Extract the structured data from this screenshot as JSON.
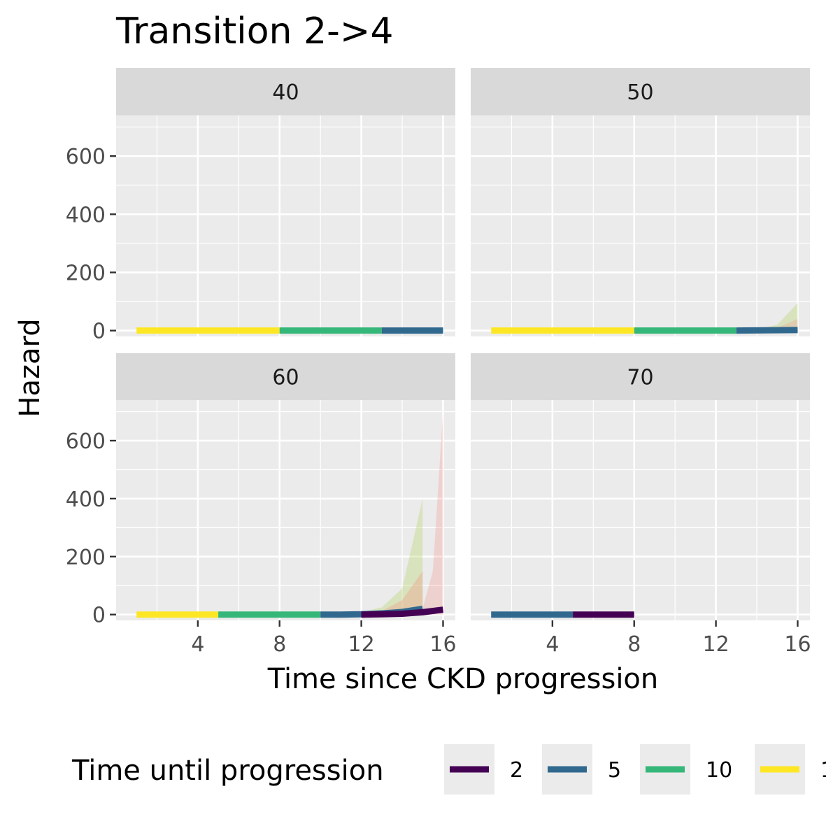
{
  "chart_data": {
    "type": "line",
    "title": "Transition 2->4",
    "xlabel": "Time since CKD progression",
    "ylabel": "Hazard",
    "xlim": [
      0,
      16.6
    ],
    "ylim": [
      -20,
      740
    ],
    "x_ticks": [
      4,
      8,
      12,
      16
    ],
    "y_ticks": [
      0,
      200,
      400,
      600
    ],
    "grid": true,
    "legend": {
      "title": "Time until progression",
      "position": "bottom",
      "entries": [
        {
          "label": "2",
          "color": "#440154"
        },
        {
          "label": "5",
          "color": "#31688E"
        },
        {
          "label": "10",
          "color": "#35B779"
        },
        {
          "label": "1",
          "color": "#FDE725"
        }
      ]
    },
    "panels": [
      {
        "label": "40",
        "ribbons": [],
        "series": [
          {
            "key": "yellow",
            "color": "#FDE725",
            "x": [
              1,
              8
            ],
            "y": [
              0,
              0
            ]
          },
          {
            "key": "green",
            "color": "#35B779",
            "x": [
              8,
              13
            ],
            "y": [
              0,
              0
            ]
          },
          {
            "key": "blue",
            "color": "#31688E",
            "x": [
              13,
              16
            ],
            "y": [
              0,
              0
            ]
          }
        ]
      },
      {
        "label": "50",
        "ribbons": [
          {
            "color": "#B5D46B",
            "opacity": 0.35,
            "x": [
              13,
              14,
              15,
              16
            ],
            "lower": [
              0,
              0,
              0,
              0
            ],
            "upper": [
              2,
              5,
              20,
              95
            ]
          },
          {
            "color": "#F8766D",
            "opacity": 0.2,
            "x": [
              13,
              14,
              15,
              16
            ],
            "lower": [
              0,
              0,
              0,
              0
            ],
            "upper": [
              1,
              3,
              10,
              40
            ]
          }
        ],
        "series": [
          {
            "key": "yellow",
            "color": "#FDE725",
            "x": [
              1,
              8
            ],
            "y": [
              0,
              0
            ]
          },
          {
            "key": "green",
            "color": "#35B779",
            "x": [
              8,
              13
            ],
            "y": [
              0,
              0
            ]
          },
          {
            "key": "blue",
            "color": "#31688E",
            "x": [
              13,
              16
            ],
            "y": [
              0,
              2
            ]
          }
        ]
      },
      {
        "label": "60",
        "ribbons": [
          {
            "color": "#B5D46B",
            "opacity": 0.35,
            "x": [
              10,
              11,
              12,
              13,
              14,
              15
            ],
            "lower": [
              0,
              0,
              0,
              0,
              0,
              0
            ],
            "upper": [
              2,
              4,
              8,
              25,
              90,
              400
            ]
          },
          {
            "color": "#F8766D",
            "opacity": 0.25,
            "x": [
              12,
              13,
              14,
              15
            ],
            "lower": [
              0,
              0,
              0,
              0
            ],
            "upper": [
              5,
              12,
              50,
              150
            ]
          },
          {
            "color": "#F8766D",
            "opacity": 0.22,
            "x": [
              15,
              15.5,
              16
            ],
            "lower": [
              0,
              0,
              0
            ],
            "upper": [
              20,
              150,
              700
            ]
          }
        ],
        "series": [
          {
            "key": "yellow",
            "color": "#FDE725",
            "x": [
              1,
              5
            ],
            "y": [
              0,
              0
            ]
          },
          {
            "key": "green",
            "color": "#35B779",
            "x": [
              5,
              10
            ],
            "y": [
              0,
              0
            ]
          },
          {
            "key": "blue",
            "color": "#31688E",
            "x": [
              10,
              11,
              12,
              13,
              14,
              15
            ],
            "y": [
              0,
              0,
              1,
              4,
              9,
              20
            ]
          },
          {
            "key": "purple",
            "color": "#440154",
            "x": [
              12,
              13,
              14,
              15,
              16
            ],
            "y": [
              0,
              1,
              3,
              8,
              17
            ]
          }
        ]
      },
      {
        "label": "70",
        "ribbons": [],
        "series": [
          {
            "key": "blue",
            "color": "#31688E",
            "x": [
              1,
              5
            ],
            "y": [
              0,
              0
            ]
          },
          {
            "key": "purple",
            "color": "#440154",
            "x": [
              5,
              8
            ],
            "y": [
              0,
              0
            ]
          }
        ]
      }
    ]
  }
}
